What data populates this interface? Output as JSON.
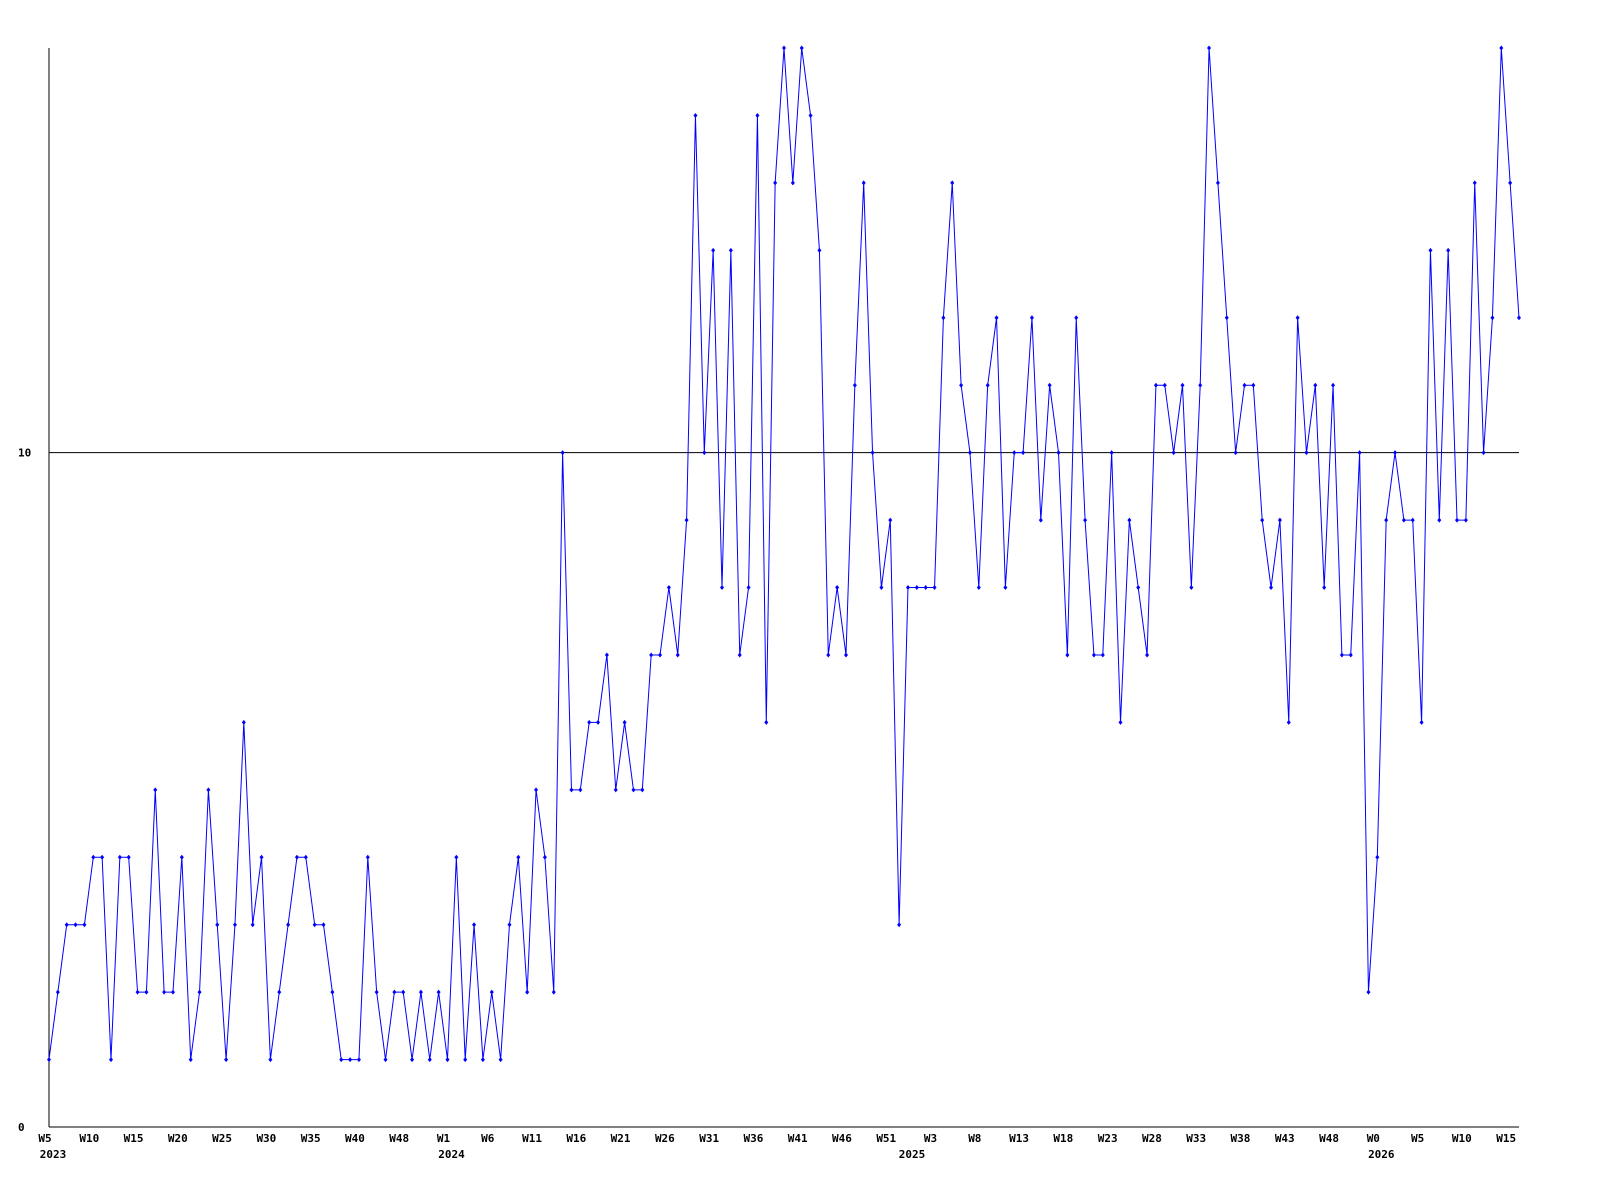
{
  "chart_data": {
    "type": "line",
    "categories": [
      "W5",
      null,
      null,
      null,
      null,
      "W10",
      null,
      null,
      null,
      null,
      "W15",
      null,
      null,
      null,
      null,
      "W20",
      null,
      null,
      null,
      null,
      "W25",
      null,
      null,
      null,
      null,
      "W30",
      null,
      null,
      null,
      null,
      "W35",
      null,
      null,
      null,
      null,
      "W40",
      null,
      null,
      null,
      null,
      "W48",
      null,
      null,
      null,
      null,
      "W1",
      null,
      null,
      null,
      null,
      "W6",
      null,
      null,
      null,
      null,
      "W11",
      null,
      null,
      null,
      null,
      "W16",
      null,
      null,
      null,
      null,
      "W21",
      null,
      null,
      null,
      null,
      "W26",
      null,
      null,
      null,
      null,
      "W31",
      null,
      null,
      null,
      null,
      "W36",
      null,
      null,
      null,
      null,
      "W41",
      null,
      null,
      null,
      null,
      "W46",
      null,
      null,
      null,
      null,
      "W51",
      null,
      null,
      null,
      null,
      "W3",
      null,
      null,
      null,
      null,
      "W8",
      null,
      null,
      null,
      null,
      "W13",
      null,
      null,
      null,
      null,
      "W18",
      null,
      null,
      null,
      null,
      "W23",
      null,
      null,
      null,
      null,
      "W28",
      null,
      null,
      null,
      null,
      "W33",
      null,
      null,
      null,
      null,
      "W38",
      null,
      null,
      null,
      null,
      "W43",
      null,
      null,
      null,
      null,
      "W48",
      null,
      null,
      null,
      null,
      "W0",
      null,
      null,
      null,
      null,
      "W5",
      null,
      null,
      null,
      null,
      "W10",
      null,
      null,
      null,
      null,
      "W15",
      null
    ],
    "years": [
      "2023",
      null,
      null,
      null,
      null,
      null,
      null,
      null,
      null,
      null,
      null,
      null,
      null,
      null,
      null,
      null,
      null,
      null,
      null,
      null,
      null,
      null,
      null,
      null,
      null,
      null,
      null,
      null,
      null,
      null,
      null,
      null,
      null,
      null,
      null,
      null,
      null,
      null,
      null,
      null,
      null,
      null,
      null,
      null,
      null,
      "2024",
      null,
      null,
      null,
      null,
      null,
      null,
      null,
      null,
      null,
      null,
      null,
      null,
      null,
      null,
      null,
      null,
      null,
      null,
      null,
      null,
      null,
      null,
      null,
      null,
      null,
      null,
      null,
      null,
      null,
      null,
      null,
      null,
      null,
      null,
      null,
      null,
      null,
      null,
      null,
      null,
      null,
      null,
      null,
      null,
      null,
      null,
      null,
      null,
      null,
      null,
      null,
      "2025",
      null,
      null,
      null,
      null,
      null,
      null,
      null,
      null,
      null,
      null,
      null,
      null,
      null,
      null,
      null,
      null,
      null,
      null,
      null,
      null,
      null,
      null,
      null,
      null,
      null,
      null,
      null,
      null,
      null,
      null,
      null,
      null,
      null,
      null,
      null,
      null,
      null,
      null,
      null,
      null,
      null,
      null,
      null,
      null,
      null,
      null,
      null,
      null,
      null,
      null,
      null,
      null,
      "2026",
      null,
      null,
      null,
      null,
      null,
      null,
      null,
      null,
      null,
      null,
      null,
      null,
      null,
      null,
      null,
      null
    ],
    "series": [
      {
        "color": "#0000ff",
        "values": [
          1,
          2,
          3,
          3,
          3,
          4,
          4,
          1,
          4,
          4,
          2,
          2,
          5,
          2,
          2,
          4,
          1,
          2,
          5,
          3,
          1,
          3,
          6,
          3,
          4,
          1,
          2,
          3,
          4,
          4,
          3,
          3,
          2,
          1,
          1,
          1,
          4,
          2,
          1,
          2,
          2,
          1,
          2,
          1,
          2,
          1,
          4,
          1,
          3,
          1,
          2,
          1,
          3,
          4,
          2,
          5,
          4,
          2,
          10,
          5,
          5,
          6,
          6,
          7,
          5,
          6,
          5,
          5,
          7,
          7,
          8,
          7,
          9,
          15,
          10,
          13,
          8,
          13,
          7,
          8,
          15,
          6,
          14,
          16,
          14,
          16,
          15,
          13,
          7,
          8,
          7,
          11,
          14,
          10,
          8,
          9,
          3,
          8,
          8,
          8,
          8,
          12,
          14,
          11,
          10,
          8,
          11,
          12,
          8,
          10,
          10,
          12,
          9,
          11,
          10,
          7,
          12,
          9,
          7,
          7,
          10,
          6,
          9,
          8,
          7,
          11,
          11,
          10,
          11,
          8,
          11,
          16,
          14,
          12,
          10,
          11,
          11,
          9,
          8,
          9,
          6,
          12,
          10,
          11,
          8,
          11,
          7,
          7,
          10,
          2,
          4,
          9,
          10,
          9,
          9,
          6,
          13,
          9,
          13,
          9,
          9,
          14,
          10,
          12,
          16,
          14,
          12
        ]
      }
    ],
    "ylim": [
      0,
      16
    ],
    "yticks": [
      0,
      10
    ],
    "grid": true
  }
}
